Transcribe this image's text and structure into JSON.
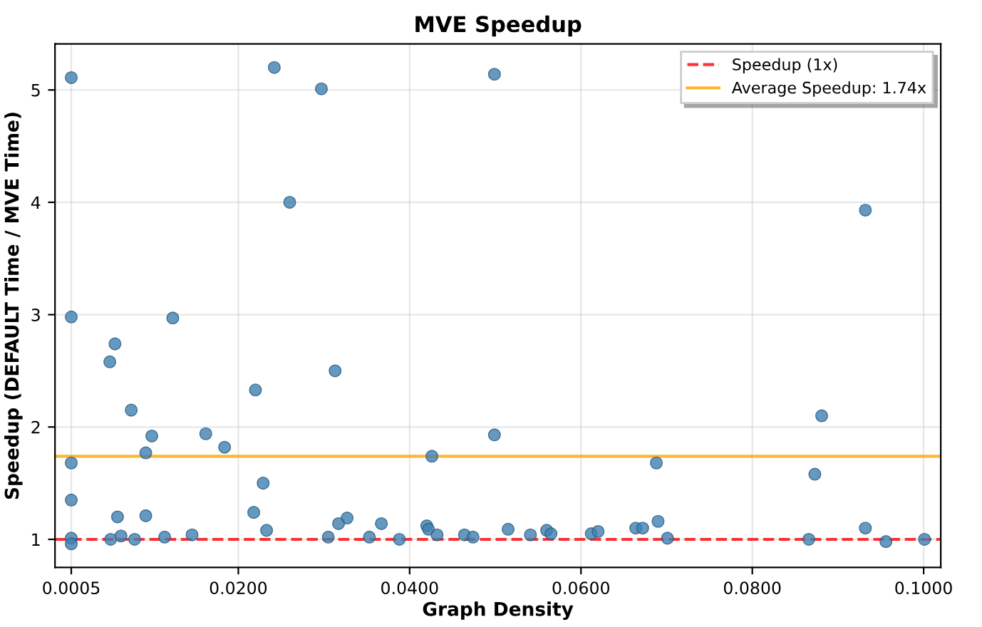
{
  "chart_data": {
    "type": "scatter",
    "title": "MVE Speedup",
    "xlabel": "Graph Density",
    "ylabel": "Speedup (DEFAULT Time / MVE Time)",
    "series": [
      {
        "color": "#3f7fb0",
        "x": [
          0.0005,
          0.0242,
          0.0297,
          0.026,
          0.0499,
          0.0932,
          0.0005,
          0.01235,
          0.005,
          0.0056,
          0.0313,
          0.022,
          0.0075,
          0.0162,
          0.0099,
          0.0184,
          0.0092,
          0.0005,
          0.0426,
          0.0499,
          0.0229,
          0.0005,
          0.0218,
          0.0059,
          0.0092,
          0.0327,
          0.0317,
          0.0367,
          0.042,
          0.0422,
          0.0233,
          0.0432,
          0.0146,
          0.0464,
          0.0474,
          0.0063,
          0.0114,
          0.0305,
          0.0353,
          0.0005,
          0.0005,
          0.0051,
          0.0079,
          0.0388,
          0.0515,
          0.0541,
          0.056,
          0.0565,
          0.0612,
          0.062,
          0.0664,
          0.0672,
          0.0688,
          0.069,
          0.0701,
          0.0866,
          0.0873,
          0.0881,
          0.0932,
          0.0956,
          0.1001
        ],
        "values": [
          5.11,
          5.2,
          5.01,
          4.0,
          5.14,
          3.93,
          2.98,
          2.97,
          2.58,
          2.74,
          2.5,
          2.33,
          2.15,
          1.94,
          1.92,
          1.82,
          1.77,
          1.68,
          1.74,
          1.93,
          1.5,
          1.35,
          1.24,
          1.2,
          1.21,
          1.19,
          1.14,
          1.14,
          1.12,
          1.09,
          1.08,
          1.04,
          1.04,
          1.04,
          1.02,
          1.03,
          1.02,
          1.02,
          1.02,
          1.01,
          0.96,
          1.0,
          1.0,
          1.0,
          1.09,
          1.04,
          1.08,
          1.05,
          1.05,
          1.07,
          1.1,
          1.1,
          1.68,
          1.16,
          1.01,
          1.0,
          1.58,
          2.1,
          1.1,
          0.98,
          1.0
        ]
      }
    ],
    "ref_lines": [
      {
        "axis": "y",
        "value": 1,
        "label": "Speedup (1x)",
        "color": "#ff0000",
        "line_style": "dashed"
      },
      {
        "axis": "y",
        "value": 1.74,
        "label": "Average Speedup: 1.74x",
        "color": "#ffa500",
        "line_style": "solid"
      }
    ],
    "xlim": [
      -0.0014,
      0.102
    ],
    "ylim": [
      0.75,
      5.41
    ],
    "xticks": [
      {
        "value": 0.0005,
        "label": "0.0005"
      },
      {
        "value": 0.02,
        "label": "0.0200"
      },
      {
        "value": 0.04,
        "label": "0.0400"
      },
      {
        "value": 0.06,
        "label": "0.0600"
      },
      {
        "value": 0.08,
        "label": "0.0800"
      },
      {
        "value": 0.1,
        "label": "0.1000"
      }
    ],
    "yticks": [
      1,
      2,
      3,
      4,
      5
    ],
    "grid": true,
    "legend": "top right",
    "marker": "circle"
  }
}
